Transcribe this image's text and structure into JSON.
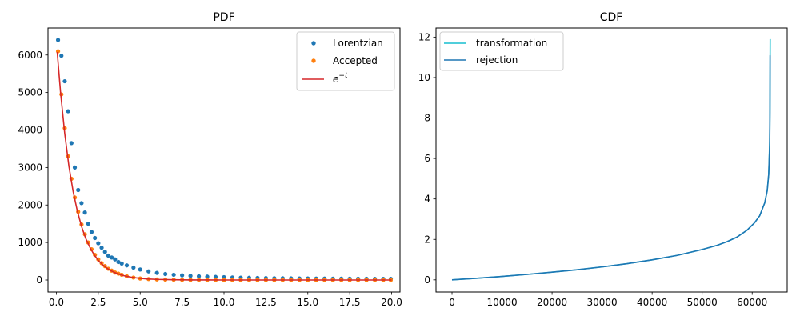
{
  "chart_data": [
    {
      "type": "scatter",
      "title": "PDF",
      "xlabel": "",
      "ylabel": "",
      "xlim": [
        -0.5,
        20.5
      ],
      "ylim": [
        -320,
        6720
      ],
      "x_ticks": [
        0.0,
        2.5,
        5.0,
        7.5,
        10.0,
        12.5,
        15.0,
        17.5,
        20.0
      ],
      "x_tick_labels": [
        "0.0",
        "2.5",
        "5.0",
        "7.5",
        "10.0",
        "12.5",
        "15.0",
        "17.5",
        "20.0"
      ],
      "y_ticks": [
        0,
        1000,
        2000,
        3000,
        4000,
        5000,
        6000
      ],
      "y_tick_labels": [
        "0",
        "1000",
        "2000",
        "3000",
        "4000",
        "5000",
        "6000"
      ],
      "grid": false,
      "legend_position": "top-right",
      "series": [
        {
          "name": "Lorentzian",
          "kind": "points",
          "color": "#1f77b4",
          "x": [
            0.1,
            0.3,
            0.5,
            0.7,
            0.9,
            1.1,
            1.3,
            1.5,
            1.7,
            1.9,
            2.1,
            2.3,
            2.5,
            2.7,
            2.9,
            3.1,
            3.3,
            3.5,
            3.7,
            3.9,
            4.2,
            4.6,
            5.0,
            5.5,
            6.0,
            6.5,
            7.0,
            7.5,
            8.0,
            8.5,
            9.0,
            9.5,
            10.0,
            10.5,
            11.0,
            11.5,
            12.0,
            12.5,
            13.0,
            13.5,
            14.0,
            14.5,
            15.0,
            15.5,
            16.0,
            16.5,
            17.0,
            17.5,
            18.0,
            18.5,
            19.0,
            19.5,
            19.95
          ],
          "y": [
            6400,
            5980,
            5300,
            4500,
            3650,
            3000,
            2400,
            2050,
            1800,
            1500,
            1280,
            1120,
            980,
            860,
            750,
            650,
            600,
            550,
            480,
            440,
            390,
            330,
            280,
            230,
            190,
            160,
            140,
            125,
            110,
            100,
            90,
            82,
            75,
            68,
            62,
            58,
            54,
            50,
            47,
            45,
            43,
            41,
            40,
            38,
            37,
            36,
            35,
            34,
            33,
            32,
            31,
            30,
            29
          ]
        },
        {
          "name": "Accepted",
          "kind": "points",
          "color": "#ff7f0e",
          "x": [
            0.1,
            0.3,
            0.5,
            0.7,
            0.9,
            1.1,
            1.3,
            1.5,
            1.7,
            1.9,
            2.1,
            2.3,
            2.5,
            2.7,
            2.9,
            3.1,
            3.3,
            3.5,
            3.7,
            3.9,
            4.2,
            4.6,
            5.0,
            5.5,
            6.0,
            6.5,
            7.0,
            7.5,
            8.0,
            8.5,
            9.0,
            9.5,
            10.0,
            10.5,
            11.0,
            11.5,
            12.0,
            12.5,
            13.0,
            13.5,
            14.0,
            14.5,
            15.0,
            15.5,
            16.0,
            16.5,
            17.0,
            17.5,
            18.0,
            18.5,
            19.0,
            19.5,
            19.95
          ],
          "y": [
            6100,
            4950,
            4050,
            3300,
            2700,
            2200,
            1820,
            1480,
            1220,
            1000,
            820,
            670,
            550,
            450,
            370,
            300,
            250,
            200,
            170,
            140,
            100,
            65,
            40,
            25,
            15,
            10,
            6,
            4,
            2,
            1,
            1,
            0,
            0,
            0,
            0,
            0,
            0,
            0,
            0,
            0,
            0,
            0,
            0,
            0,
            0,
            0,
            0,
            0,
            0,
            0,
            0,
            0,
            0
          ]
        },
        {
          "name": "e^{-t}",
          "kind": "line",
          "color": "#d62728",
          "x": [
            0.05,
            0.25,
            0.5,
            0.75,
            1.0,
            1.25,
            1.5,
            1.75,
            2.0,
            2.25,
            2.5,
            2.75,
            3.0,
            3.25,
            3.5,
            3.75,
            4.0,
            4.5,
            5.0,
            5.5,
            6.0,
            7.0,
            8.0,
            9.0,
            10.0,
            12.5,
            15.0,
            17.5,
            20.0
          ],
          "y": [
            6080,
            5000,
            3900,
            3030,
            2360,
            1840,
            1430,
            1110,
            870,
            675,
            525,
            410,
            320,
            249,
            194,
            151,
            117,
            71,
            43,
            26,
            16,
            6,
            2,
            1,
            0,
            0,
            0,
            0,
            0
          ]
        }
      ]
    },
    {
      "type": "line",
      "title": "CDF",
      "xlabel": "",
      "ylabel": "",
      "xlim": [
        -3200,
        67000
      ],
      "ylim": [
        -0.6,
        12.45
      ],
      "x_ticks": [
        0,
        10000,
        20000,
        30000,
        40000,
        50000,
        60000
      ],
      "x_tick_labels": [
        "0",
        "10000",
        "20000",
        "30000",
        "40000",
        "50000",
        "60000"
      ],
      "y_ticks": [
        0,
        2,
        4,
        6,
        8,
        10,
        12
      ],
      "y_tick_labels": [
        "0",
        "2",
        "4",
        "6",
        "8",
        "10",
        "12"
      ],
      "grid": false,
      "legend_position": "top-left",
      "series": [
        {
          "name": "transformation",
          "kind": "line",
          "color": "#17becf",
          "x": [
            0,
            5000,
            10000,
            15000,
            20000,
            25000,
            30000,
            35000,
            40000,
            45000,
            50000,
            53000,
            55000,
            57000,
            59000,
            60500,
            61500,
            62500,
            63000,
            63300,
            63500,
            63550,
            63600
          ],
          "y": [
            0,
            0.08,
            0.17,
            0.27,
            0.38,
            0.5,
            0.64,
            0.8,
            0.99,
            1.21,
            1.5,
            1.71,
            1.89,
            2.12,
            2.46,
            2.83,
            3.17,
            3.8,
            4.4,
            5.2,
            6.8,
            8.5,
            11.9
          ]
        },
        {
          "name": "rejection",
          "kind": "line",
          "color": "#1f77b4",
          "x": [
            0,
            5000,
            10000,
            15000,
            20000,
            25000,
            30000,
            35000,
            40000,
            45000,
            50000,
            53000,
            55000,
            57000,
            59000,
            60500,
            61500,
            62500,
            63000,
            63300,
            63500,
            63550,
            63580
          ],
          "y": [
            0,
            0.08,
            0.17,
            0.27,
            0.38,
            0.5,
            0.64,
            0.8,
            0.99,
            1.21,
            1.5,
            1.71,
            1.89,
            2.12,
            2.46,
            2.83,
            3.17,
            3.8,
            4.4,
            5.2,
            6.6,
            8.2,
            11.1
          ]
        }
      ]
    }
  ]
}
